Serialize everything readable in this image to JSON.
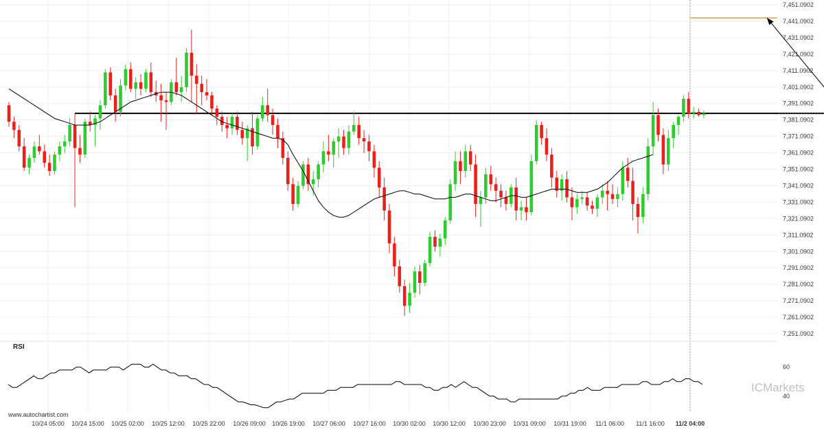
{
  "footer": {
    "source": "www.autochartist.com"
  },
  "watermark": {
    "brand": "ICMarkets"
  },
  "chart_data": {
    "type": "candlestick",
    "y_ticks": [
      "7,451.0902",
      "7,441.0902",
      "7,431.0902",
      "7,421.0902",
      "7,411.0902",
      "7,401.0902",
      "7,391.0902",
      "7,381.0902",
      "7,371.0902",
      "7,361.0902",
      "7,351.0902",
      "7,341.0902",
      "7,331.0902",
      "7,321.0902",
      "7,311.0902",
      "7,301.0902",
      "7,291.0902",
      "7,281.0902",
      "7,271.0902",
      "7,261.0902",
      "7,251.0902"
    ],
    "ylim": [
      7251.0902,
      7451.0902
    ],
    "x_ticks": [
      "10/24 05:00",
      "10/24 15:00",
      "10/25 02:00",
      "10/25 12:00",
      "10/25 22:00",
      "10/26 09:00",
      "10/26 19:00",
      "10/27 06:00",
      "10/27 16:00",
      "10/30 02:00",
      "10/30 12:00",
      "10/30 23:00",
      "10/31 09:00",
      "10/31 19:00",
      "11/1 06:00",
      "11/1 16:00",
      "11/2 04:00"
    ],
    "current_x_tick": "11/2 04:00",
    "support_resistance_level": 7385.09,
    "target_level": 7443.09,
    "pattern_start_bar": 13,
    "pattern_end_bar": 165,
    "forecast_arrow": {
      "from_bar": 165,
      "from_price": 7385.09,
      "to_price": 7443.09
    },
    "colors": {
      "up": "#2ecc2e",
      "down": "#e8211c",
      "ma": "#000000",
      "level": "#000000",
      "target": "#d9a24a",
      "rsi": "#000000",
      "crosshair": "#999999"
    },
    "ohlc": [
      [
        7390,
        7392,
        7377,
        7380
      ],
      [
        7380,
        7383,
        7370,
        7375
      ],
      [
        7375,
        7378,
        7362,
        7365
      ],
      [
        7365,
        7370,
        7350,
        7352
      ],
      [
        7352,
        7360,
        7348,
        7358
      ],
      [
        7358,
        7368,
        7355,
        7365
      ],
      [
        7365,
        7372,
        7360,
        7362
      ],
      [
        7362,
        7366,
        7352,
        7355
      ],
      [
        7355,
        7360,
        7347,
        7350
      ],
      [
        7350,
        7362,
        7348,
        7360
      ],
      [
        7360,
        7368,
        7356,
        7365
      ],
      [
        7365,
        7372,
        7361,
        7368
      ],
      [
        7368,
        7382,
        7365,
        7378
      ],
      [
        7378,
        7385,
        7328,
        7364
      ],
      [
        7364,
        7372,
        7355,
        7360
      ],
      [
        7360,
        7382,
        7358,
        7380
      ],
      [
        7380,
        7386,
        7374,
        7378
      ],
      [
        7378,
        7384,
        7365,
        7382
      ],
      [
        7382,
        7393,
        7375,
        7390
      ],
      [
        7390,
        7412,
        7388,
        7410
      ],
      [
        7410,
        7413,
        7393,
        7396
      ],
      [
        7396,
        7400,
        7380,
        7386
      ],
      [
        7386,
        7406,
        7383,
        7402
      ],
      [
        7402,
        7415,
        7399,
        7412
      ],
      [
        7412,
        7416,
        7398,
        7400
      ],
      [
        7400,
        7407,
        7394,
        7404
      ],
      [
        7404,
        7409,
        7396,
        7400
      ],
      [
        7400,
        7412,
        7398,
        7410
      ],
      [
        7410,
        7416,
        7395,
        7398
      ],
      [
        7398,
        7405,
        7392,
        7396
      ],
      [
        7396,
        7403,
        7380,
        7393
      ],
      [
        7393,
        7398,
        7375,
        7392
      ],
      [
        7392,
        7406,
        7390,
        7404
      ],
      [
        7404,
        7419,
        7396,
        7398
      ],
      [
        7398,
        7408,
        7392,
        7401
      ],
      [
        7401,
        7425,
        7398,
        7422
      ],
      [
        7422,
        7436,
        7392,
        7408
      ],
      [
        7408,
        7415,
        7385,
        7403
      ],
      [
        7403,
        7408,
        7390,
        7398
      ],
      [
        7398,
        7406,
        7393,
        7396
      ],
      [
        7396,
        7398,
        7384,
        7388
      ],
      [
        7388,
        7390,
        7378,
        7383
      ],
      [
        7383,
        7386,
        7374,
        7378
      ],
      [
        7378,
        7383,
        7370,
        7376
      ],
      [
        7376,
        7385,
        7372,
        7383
      ],
      [
        7383,
        7386,
        7372,
        7375
      ],
      [
        7375,
        7380,
        7366,
        7370
      ],
      [
        7370,
        7378,
        7356,
        7376
      ],
      [
        7376,
        7386,
        7360,
        7365
      ],
      [
        7365,
        7384,
        7363,
        7382
      ],
      [
        7382,
        7395,
        7380,
        7390
      ],
      [
        7390,
        7400,
        7380,
        7384
      ],
      [
        7384,
        7388,
        7372,
        7378
      ],
      [
        7378,
        7382,
        7364,
        7370
      ],
      [
        7370,
        7374,
        7354,
        7358
      ],
      [
        7358,
        7362,
        7338,
        7342
      ],
      [
        7342,
        7346,
        7326,
        7330
      ],
      [
        7330,
        7344,
        7328,
        7341
      ],
      [
        7341,
        7356,
        7339,
        7354
      ],
      [
        7354,
        7358,
        7338,
        7342
      ],
      [
        7342,
        7350,
        7335,
        7345
      ],
      [
        7345,
        7356,
        7340,
        7354
      ],
      [
        7354,
        7368,
        7349,
        7362
      ],
      [
        7362,
        7372,
        7356,
        7360
      ],
      [
        7360,
        7370,
        7352,
        7368
      ],
      [
        7368,
        7376,
        7358,
        7371
      ],
      [
        7371,
        7375,
        7360,
        7364
      ],
      [
        7364,
        7378,
        7360,
        7374
      ],
      [
        7374,
        7386,
        7372,
        7378
      ],
      [
        7378,
        7383,
        7366,
        7370
      ],
      [
        7370,
        7375,
        7361,
        7368
      ],
      [
        7368,
        7372,
        7356,
        7362
      ],
      [
        7362,
        7366,
        7346,
        7352
      ],
      [
        7352,
        7356,
        7334,
        7340
      ],
      [
        7340,
        7346,
        7320,
        7326
      ],
      [
        7326,
        7330,
        7300,
        7306
      ],
      [
        7306,
        7310,
        7286,
        7292
      ],
      [
        7292,
        7296,
        7276,
        7280
      ],
      [
        7280,
        7284,
        7262,
        7268
      ],
      [
        7268,
        7282,
        7264,
        7276
      ],
      [
        7276,
        7292,
        7273,
        7289
      ],
      [
        7289,
        7293,
        7275,
        7282
      ],
      [
        7282,
        7296,
        7280,
        7294
      ],
      [
        7294,
        7313,
        7292,
        7310
      ],
      [
        7310,
        7314,
        7301,
        7304
      ],
      [
        7304,
        7312,
        7298,
        7309
      ],
      [
        7309,
        7322,
        7305,
        7320
      ],
      [
        7320,
        7345,
        7318,
        7342
      ],
      [
        7342,
        7362,
        7338,
        7356
      ],
      [
        7356,
        7362,
        7342,
        7350
      ],
      [
        7350,
        7366,
        7346,
        7362
      ],
      [
        7362,
        7366,
        7350,
        7354
      ],
      [
        7354,
        7360,
        7322,
        7330
      ],
      [
        7330,
        7338,
        7316,
        7334
      ],
      [
        7334,
        7352,
        7330,
        7348
      ],
      [
        7348,
        7353,
        7338,
        7342
      ],
      [
        7342,
        7346,
        7331,
        7338
      ],
      [
        7338,
        7342,
        7328,
        7334
      ],
      [
        7334,
        7338,
        7326,
        7330
      ],
      [
        7330,
        7342,
        7328,
        7340
      ],
      [
        7340,
        7346,
        7320,
        7326
      ],
      [
        7326,
        7332,
        7320,
        7328
      ],
      [
        7328,
        7334,
        7320,
        7325
      ],
      [
        7325,
        7360,
        7323,
        7356
      ],
      [
        7356,
        7381,
        7354,
        7378
      ],
      [
        7378,
        7380,
        7366,
        7370
      ],
      [
        7370,
        7376,
        7356,
        7360
      ],
      [
        7360,
        7364,
        7340,
        7346
      ],
      [
        7346,
        7350,
        7334,
        7338
      ],
      [
        7338,
        7348,
        7332,
        7345
      ],
      [
        7345,
        7350,
        7331,
        7334
      ],
      [
        7334,
        7340,
        7320,
        7328
      ],
      [
        7328,
        7336,
        7324,
        7333
      ],
      [
        7333,
        7338,
        7330,
        7334
      ],
      [
        7334,
        7337,
        7326,
        7329
      ],
      [
        7329,
        7332,
        7324,
        7327
      ],
      [
        7327,
        7336,
        7322,
        7334
      ],
      [
        7334,
        7342,
        7330,
        7338
      ],
      [
        7338,
        7344,
        7326,
        7336
      ],
      [
        7336,
        7342,
        7330,
        7333
      ],
      [
        7333,
        7340,
        7328,
        7336
      ],
      [
        7336,
        7356,
        7332,
        7352
      ],
      [
        7352,
        7358,
        7340,
        7344
      ],
      [
        7344,
        7352,
        7320,
        7330
      ],
      [
        7330,
        7334,
        7312,
        7322
      ],
      [
        7322,
        7340,
        7318,
        7336
      ],
      [
        7336,
        7370,
        7332,
        7365
      ],
      [
        7365,
        7392,
        7360,
        7384
      ],
      [
        7384,
        7388,
        7368,
        7372
      ],
      [
        7372,
        7376,
        7348,
        7354
      ],
      [
        7354,
        7375,
        7350,
        7370
      ],
      [
        7370,
        7380,
        7364,
        7378
      ],
      [
        7378,
        7384,
        7372,
        7383
      ],
      [
        7383,
        7396,
        7380,
        7394
      ],
      [
        7394,
        7398,
        7382,
        7385
      ],
      [
        7385,
        7389,
        7382,
        7386
      ],
      [
        7386,
        7388,
        7383,
        7384
      ],
      [
        7384,
        7387,
        7382,
        7385
      ]
    ],
    "ma": [
      7400,
      7398,
      7396,
      7394,
      7392,
      7390,
      7388,
      7386,
      7384,
      7382,
      7381,
      7380,
      7379,
      7378,
      7378,
      7378,
      7378,
      7379,
      7380,
      7382,
      7384,
      7386,
      7388,
      7390,
      7392,
      7393,
      7394,
      7395,
      7396,
      7397,
      7398,
      7398,
      7398,
      7397,
      7396,
      7394,
      7392,
      7390,
      7388,
      7386,
      7384,
      7382,
      7380,
      7379,
      7378,
      7377,
      7376,
      7375,
      7374,
      7373,
      7372,
      7371,
      7370,
      7370,
      7369,
      7366,
      7360,
      7355,
      7350,
      7344,
      7338,
      7332,
      7328,
      7325,
      7323,
      7322,
      7322,
      7323,
      7325,
      7327,
      7329,
      7331,
      7333,
      7334,
      7335,
      7336,
      7337,
      7338,
      7338,
      7337,
      7336,
      7336,
      7335,
      7334,
      7333,
      7333,
      7333,
      7334,
      7334,
      7335,
      7336,
      7336,
      7335,
      7334,
      7333,
      7332,
      7332,
      7333,
      7334,
      7335,
      7335,
      7334,
      7334,
      7335,
      7336,
      7337,
      7338,
      7339,
      7339,
      7339,
      7339,
      7338,
      7337,
      7337,
      7337,
      7338,
      7339,
      7341,
      7343,
      7346,
      7349,
      7352,
      7354,
      7356,
      7357,
      7358,
      7359,
      7360
    ],
    "rsi_label": "RSI",
    "rsi_ticks": [
      "60",
      "40"
    ],
    "rsi_range": [
      30,
      75
    ],
    "rsi": [
      48,
      46,
      46,
      48,
      50,
      52,
      54,
      52,
      52,
      54,
      56,
      56,
      58,
      58,
      58,
      58,
      60,
      60,
      58,
      56,
      58,
      58,
      58,
      58,
      60,
      60,
      60,
      58,
      60,
      62,
      62,
      62,
      60,
      60,
      62,
      60,
      58,
      58,
      56,
      56,
      54,
      54,
      54,
      52,
      52,
      50,
      48,
      48,
      46,
      46,
      44,
      42,
      40,
      38,
      36,
      36,
      35,
      34,
      34,
      33,
      32,
      32,
      34,
      36,
      36,
      37,
      38,
      38,
      40,
      42,
      42,
      42,
      42,
      42,
      42,
      44,
      44,
      44,
      46,
      46,
      46,
      46,
      48,
      48,
      48,
      48,
      48,
      48,
      48,
      48,
      48,
      50,
      50,
      48,
      48,
      48,
      48,
      48,
      46,
      46,
      44,
      44,
      46,
      46,
      48,
      46,
      48,
      50,
      48,
      46,
      46,
      44,
      42,
      40,
      40,
      38,
      38,
      38,
      36,
      36,
      38,
      38,
      38,
      38,
      38,
      38,
      38,
      38,
      38,
      38,
      40,
      40,
      42,
      42,
      44,
      44,
      46,
      44,
      44,
      44,
      46,
      46,
      46,
      46,
      48,
      48,
      48,
      48,
      48,
      50,
      50,
      48,
      48,
      48,
      50,
      50,
      52,
      50,
      50,
      52,
      52,
      50,
      50,
      48
    ]
  }
}
